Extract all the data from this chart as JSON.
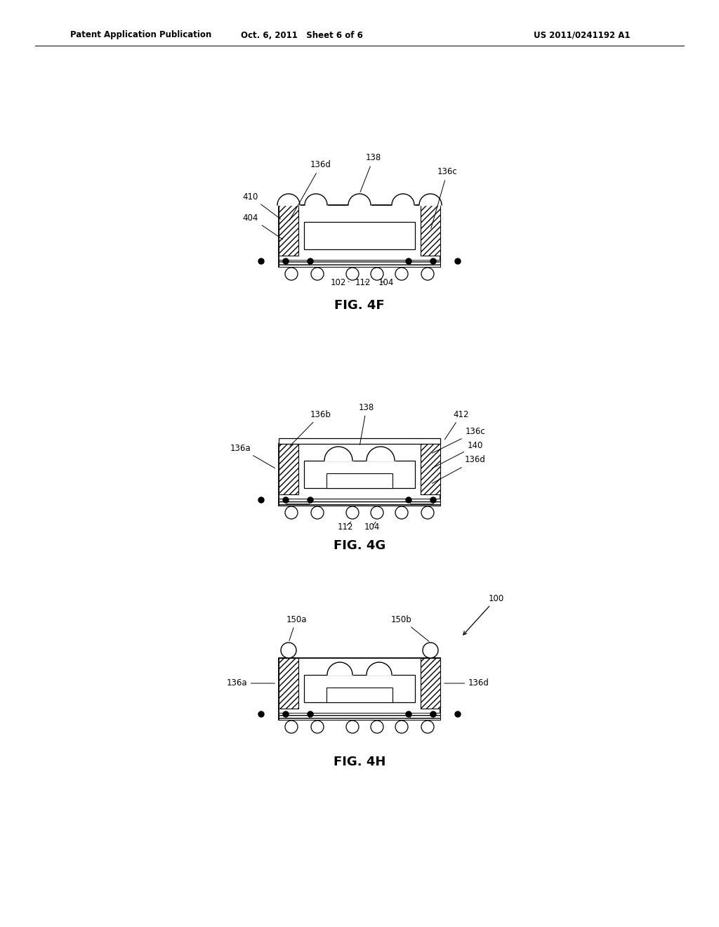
{
  "background_color": "#ffffff",
  "header_left": "Patent Application Publication",
  "header_mid": "Oct. 6, 2011   Sheet 6 of 6",
  "header_right": "US 2011/0241192 A1",
  "fig4f_label": "FIG. 4F",
  "fig4g_label": "FIG. 4G",
  "fig4h_label": "FIG. 4H"
}
